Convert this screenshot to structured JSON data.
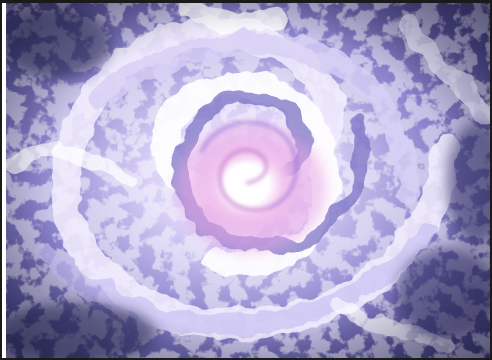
{
  "image": {
    "subject": "swirl-artwork",
    "colors": {
      "core": "#ffffff",
      "pink": "#e9a6e6",
      "lavender": "#c9c0f4",
      "violet": "#7b74c4",
      "deep": "#2f2e5c",
      "foam": "#f2f0ff"
    }
  }
}
